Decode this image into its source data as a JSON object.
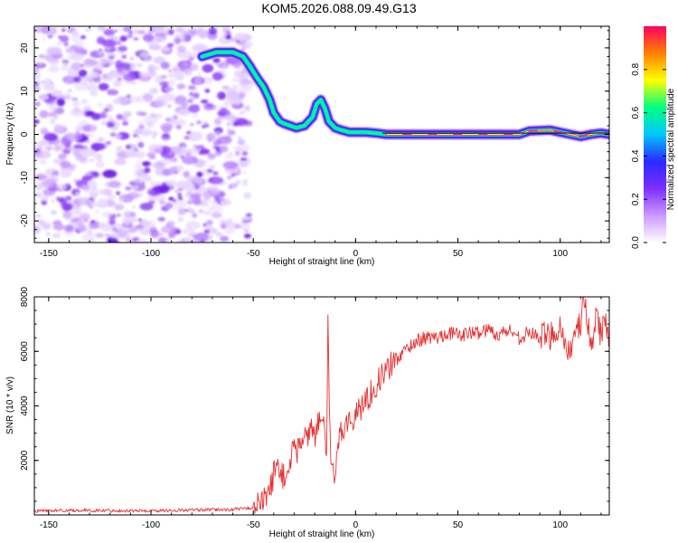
{
  "title": "KOM5.2026.088.09.49.G13",
  "chart_data": [
    {
      "type": "heatmap",
      "panel": "top",
      "title": "KOM5.2026.088.09.49.G13",
      "xlabel": "Height of straight line (km)",
      "ylabel": "Frequency (Hz)",
      "xlim": [
        -157,
        124
      ],
      "ylim": [
        -25,
        25
      ],
      "xticks": [
        -150,
        -100,
        -50,
        0,
        50,
        100
      ],
      "yticks": [
        -20,
        -10,
        0,
        10,
        20
      ],
      "xtick_labels": [
        "-150",
        "-100",
        "-50",
        "0",
        "50",
        "100"
      ],
      "ytick_labels": [
        "-20",
        "-10",
        "0",
        "10",
        "20"
      ],
      "noise_region_x": [
        -157,
        -52
      ],
      "ridge": {
        "x": [
          -75,
          -68,
          -60,
          -55,
          -52,
          -48,
          -45,
          -42,
          -40,
          -37,
          -35,
          -32,
          -29,
          -25,
          -21,
          -19,
          -17,
          -15,
          -13,
          -10,
          -7,
          -3,
          0,
          5,
          10,
          15,
          40,
          60,
          80,
          85,
          95,
          100,
          105,
          110,
          115,
          120,
          124
        ],
        "y": [
          18,
          19,
          19,
          18,
          16,
          13,
          11,
          8,
          5,
          3,
          2.5,
          2,
          1.5,
          2,
          4,
          7,
          8,
          6,
          3,
          1.5,
          1,
          0.5,
          0.5,
          0.5,
          0.3,
          0,
          0,
          0,
          0,
          0.8,
          1,
          0.5,
          0,
          -0.5,
          0,
          0.3,
          0
        ]
      },
      "colorbar": {
        "label": "Normalized spectral amplitude",
        "range": [
          0,
          1
        ],
        "ticks": [
          0.0,
          0.2,
          0.4,
          0.6,
          0.8
        ],
        "tick_labels": [
          "0.0",
          "0.2",
          "0.4",
          "0.6",
          "0.8"
        ],
        "colormap": [
          "#ffffff",
          "#cc99ff",
          "#7b2fff",
          "#2a2aff",
          "#00c8ff",
          "#00ff80",
          "#ffff00",
          "#ff8000",
          "#ff0060"
        ]
      }
    },
    {
      "type": "line",
      "panel": "bottom",
      "xlabel": "Height of straight line (km)",
      "ylabel": "SNR (10 * v/v)",
      "xlim": [
        -157,
        124
      ],
      "ylim": [
        0,
        8000
      ],
      "xticks": [
        -150,
        -100,
        -50,
        0,
        50,
        100
      ],
      "yticks": [
        2000,
        4000,
        6000,
        8000
      ],
      "xtick_labels": [
        "-150",
        "-100",
        "-50",
        "0",
        "50",
        "100"
      ],
      "ytick_labels": [
        "2000",
        "4000",
        "6000",
        "8000"
      ],
      "series": [
        {
          "name": "SNR",
          "color": "#e83030",
          "x": [
            -157,
            -140,
            -120,
            -100,
            -80,
            -60,
            -52,
            -48,
            -45,
            -42,
            -40,
            -38,
            -36,
            -34,
            -32,
            -30,
            -28,
            -26,
            -24,
            -22,
            -20,
            -18,
            -16,
            -14,
            -13.5,
            -13,
            -12,
            -11,
            -10,
            -9,
            -8,
            -6,
            -4,
            -2,
            0,
            3,
            6,
            10,
            15,
            20,
            25,
            30,
            35,
            40,
            45,
            50,
            55,
            60,
            65,
            70,
            75,
            80,
            85,
            90,
            95,
            100,
            103,
            106,
            108,
            110,
            112,
            114,
            116,
            118,
            120,
            122,
            124
          ],
          "values": [
            150,
            170,
            160,
            150,
            180,
            200,
            250,
            350,
            500,
            900,
            1500,
            1900,
            1500,
            1200,
            2000,
            2600,
            2300,
            3000,
            2700,
            3400,
            2900,
            3500,
            3300,
            2400,
            7400,
            4200,
            2000,
            1500,
            1000,
            2300,
            3000,
            3200,
            3500,
            3300,
            3700,
            4000,
            4300,
            4800,
            5300,
            5700,
            6100,
            6400,
            6500,
            6500,
            6700,
            6600,
            6650,
            6700,
            6800,
            6600,
            6800,
            6500,
            6700,
            6500,
            6600,
            6900,
            6200,
            5900,
            6800,
            7000,
            8100,
            6600,
            6200,
            7700,
            6400,
            7500,
            6000
          ]
        }
      ]
    }
  ]
}
